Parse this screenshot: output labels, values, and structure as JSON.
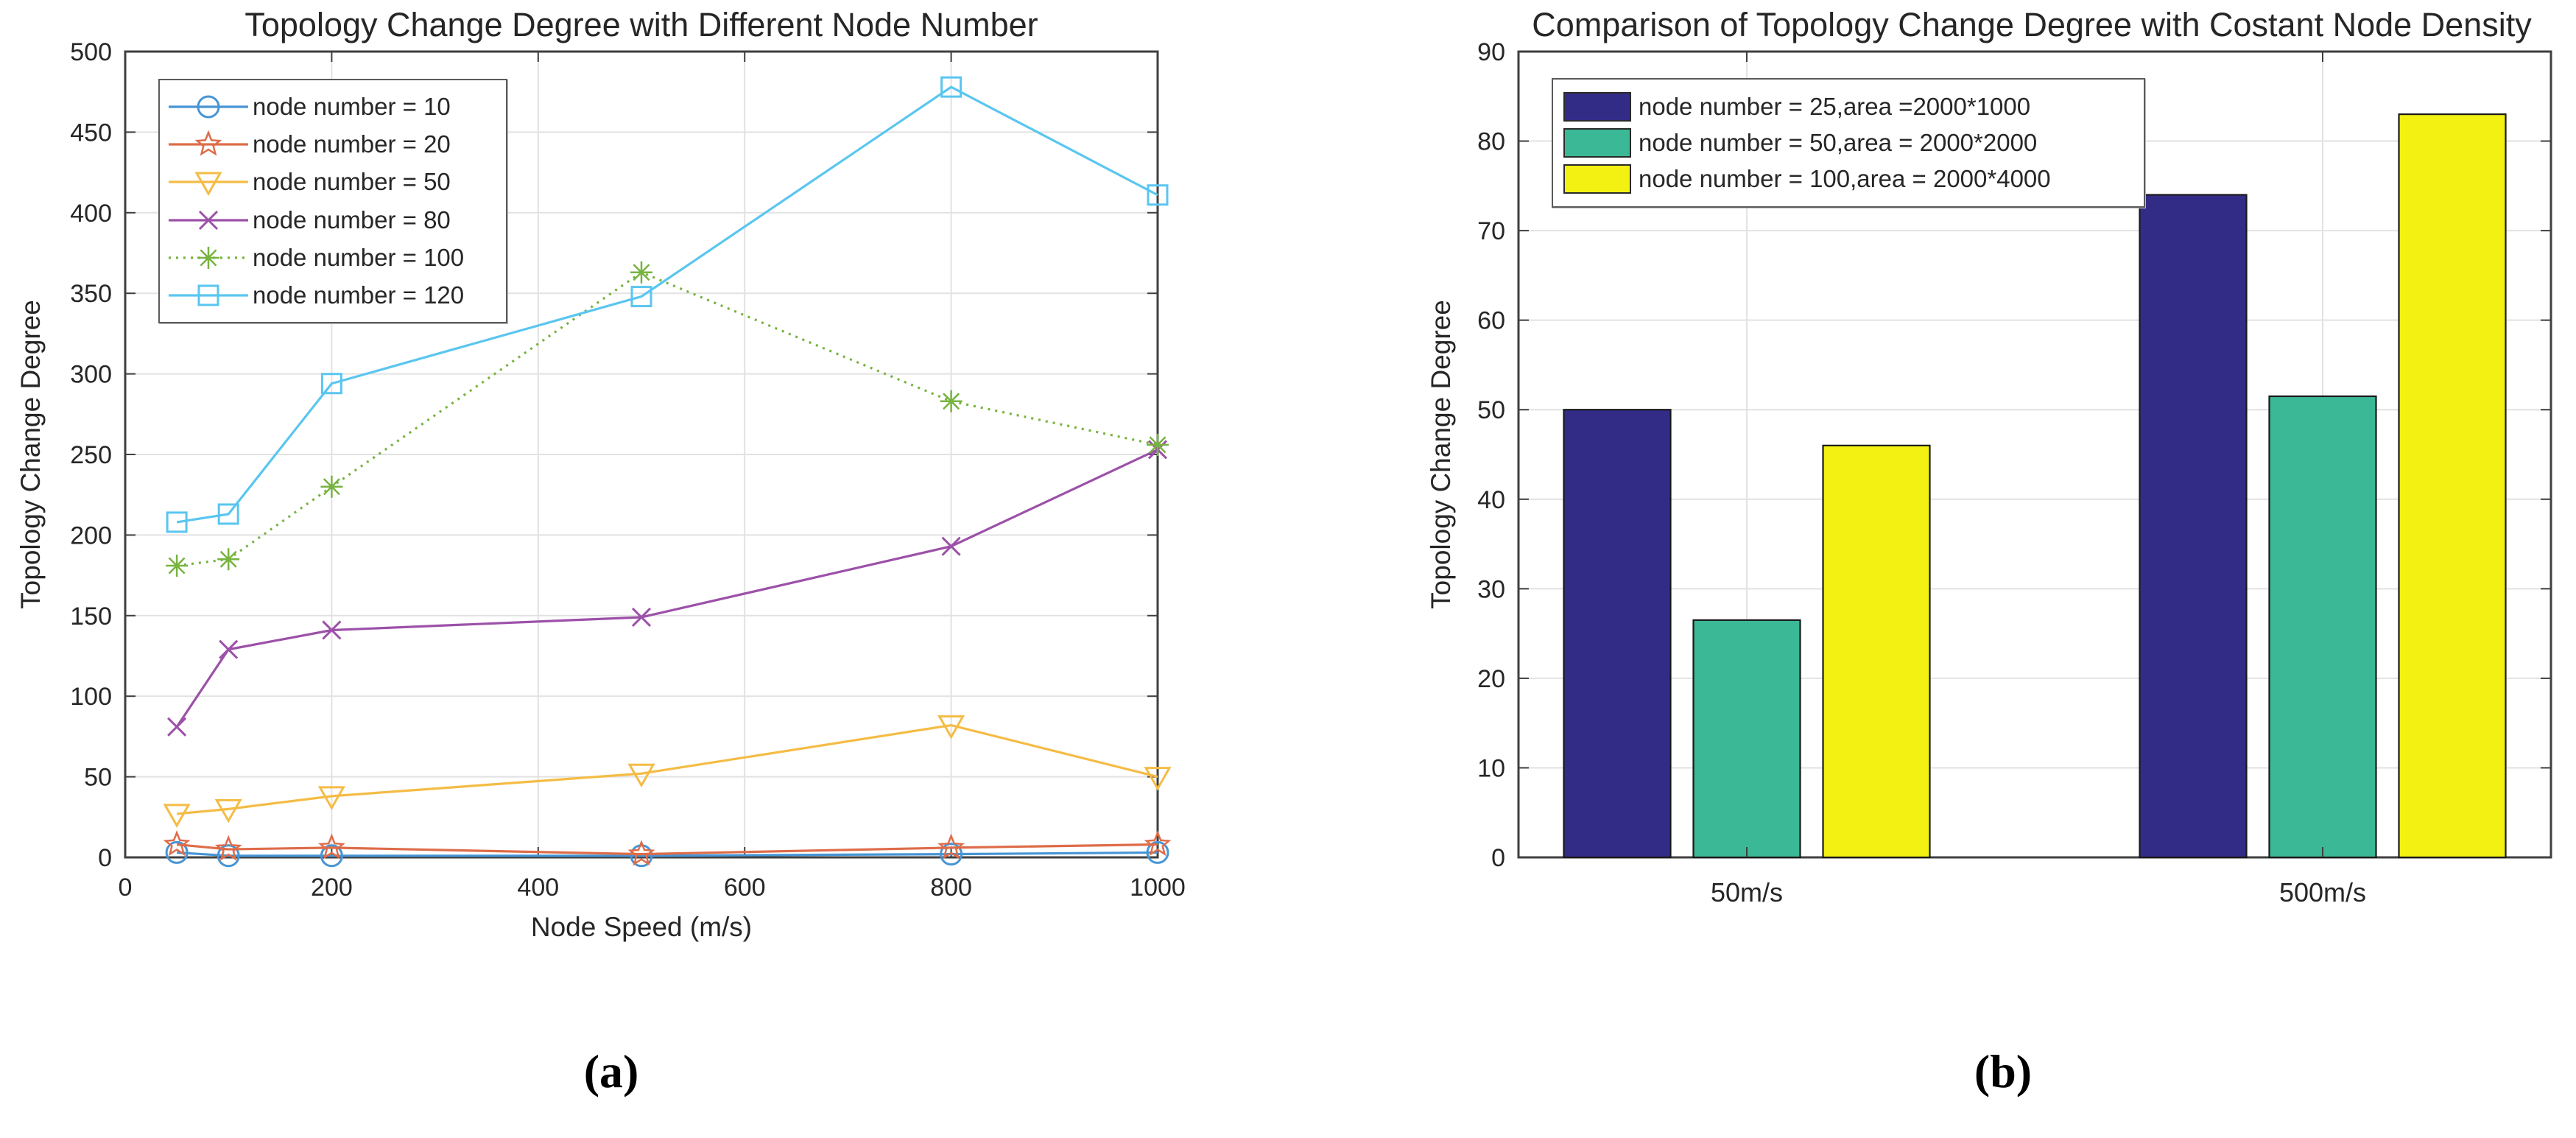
{
  "captions": {
    "a": "(a)",
    "b": "(b)"
  },
  "chart_data": [
    {
      "type": "line",
      "title": "Topology Change Degree with Different Node Number",
      "xlabel": "Node Speed (m/s)",
      "ylabel": "Topology Change Degree",
      "xlim": [
        0,
        1000
      ],
      "ylim": [
        0,
        500
      ],
      "x_ticks": [
        0,
        200,
        400,
        600,
        800,
        1000
      ],
      "y_ticks": [
        0,
        50,
        100,
        150,
        200,
        250,
        300,
        350,
        400,
        450,
        500
      ],
      "grid": true,
      "legend_position": "top-left",
      "x": [
        50,
        100,
        200,
        500,
        800,
        1000
      ],
      "series": [
        {
          "name": "node number = 10",
          "color": "#4795d5",
          "marker": "circle",
          "line": "solid",
          "values": [
            3,
            1,
            1,
            1,
            2,
            3
          ]
        },
        {
          "name": "node number = 20",
          "color": "#de6c49",
          "marker": "star",
          "line": "solid",
          "values": [
            8,
            5,
            6,
            2,
            6,
            8
          ]
        },
        {
          "name": "node number = 50",
          "color": "#f4bc45",
          "marker": "triangle-down",
          "line": "solid",
          "values": [
            27,
            30,
            38,
            52,
            82,
            50
          ]
        },
        {
          "name": "node number = 80",
          "color": "#9c51a8",
          "marker": "x",
          "line": "solid",
          "values": [
            81,
            129,
            141,
            149,
            193,
            253
          ]
        },
        {
          "name": "node number = 100",
          "color": "#77b33f",
          "marker": "asterisk",
          "line": "dotted",
          "values": [
            181,
            185,
            230,
            363,
            283,
            256
          ]
        },
        {
          "name": "node number = 120",
          "color": "#5ac6f0",
          "marker": "square",
          "line": "solid",
          "values": [
            208,
            213,
            294,
            348,
            478,
            411
          ]
        }
      ]
    },
    {
      "type": "bar",
      "title": "Comparison of Topology Change Degree with Costant Node Density",
      "xlabel": "",
      "ylabel": "Topology Change Degree",
      "categories": [
        "50m/s",
        "500m/s"
      ],
      "ylim": [
        0,
        90
      ],
      "y_ticks": [
        0,
        10,
        20,
        30,
        40,
        50,
        60,
        70,
        80,
        90
      ],
      "grid": true,
      "legend_position": "top-left",
      "series": [
        {
          "name": "node number = 25,area =2000*1000",
          "color": "#332c87",
          "values": [
            50,
            74
          ]
        },
        {
          "name": "node number = 50,area = 2000*2000",
          "color": "#3bb896",
          "values": [
            26.5,
            51.5
          ]
        },
        {
          "name": "node number = 100,area = 2000*4000",
          "color": "#f3f112",
          "values": [
            46,
            83
          ]
        }
      ]
    }
  ],
  "style": {
    "grid_color": "#e2e2e2",
    "spine_color": "#3f3f3f",
    "tick_label_color": "#262626",
    "bar_edge_color": "#1a1a1a"
  }
}
